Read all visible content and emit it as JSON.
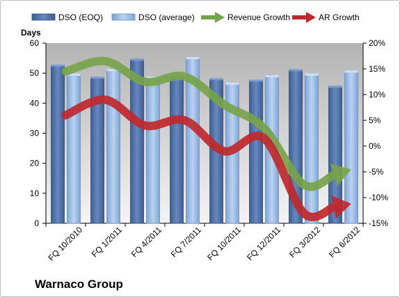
{
  "chart_data": {
    "type": "bar",
    "title": "Warnaco Group",
    "ylabel": "Days",
    "y2label": "",
    "ylim": [
      0,
      60
    ],
    "yticks": [
      0,
      10,
      20,
      30,
      40,
      50,
      60
    ],
    "y2lim": [
      -15,
      20
    ],
    "y2ticks": [
      "-15%",
      "-10%",
      "-5%",
      "0%",
      "5%",
      "10%",
      "15%",
      "20%"
    ],
    "categories": [
      "FQ 10/2010",
      "FQ 1/2011",
      "FQ 4/2011",
      "FQ 7/2011",
      "FQ 10/2011",
      "FQ 12/2011",
      "FQ 3/2012",
      "FQ 6/2012"
    ],
    "legend_position": "top",
    "grid": false,
    "series": [
      {
        "name": "DSO (EOQ)",
        "kind": "bar",
        "axis": "left",
        "color": "#4a6fa5",
        "values": [
          52.5,
          48.5,
          54.5,
          48.5,
          48,
          47.5,
          51,
          45.5
        ]
      },
      {
        "name": "DSO (average)",
        "kind": "bar",
        "axis": "left",
        "color": "#8fb4e3",
        "values": [
          49.5,
          51,
          48.5,
          55,
          46.5,
          49,
          49.5,
          50.5
        ]
      },
      {
        "name": "Revenue Growth",
        "kind": "arrow",
        "axis": "right",
        "color": "#77a34a",
        "values": [
          14.5,
          16.5,
          12.5,
          13.5,
          8,
          3.5,
          -7.5,
          -5
        ]
      },
      {
        "name": "AR Growth",
        "kind": "arrow",
        "axis": "right",
        "color": "#c0282d",
        "values": [
          6,
          9,
          4,
          5,
          -1,
          1.5,
          -13,
          -11.5
        ]
      }
    ]
  }
}
